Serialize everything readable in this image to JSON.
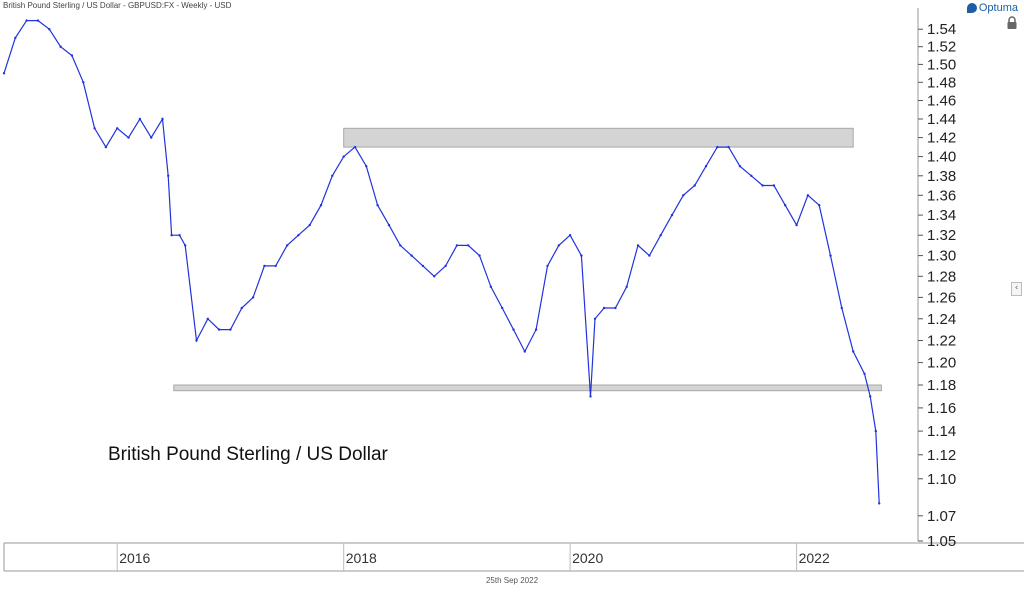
{
  "header": {
    "title": "British Pound Sterling / US Dollar - GBPUSD:FX - Weekly - USD",
    "brand": "Optuma"
  },
  "footer": {
    "date": "25th Sep 2022"
  },
  "colors": {
    "series": "#2233dd",
    "zone": "#d4d4d4",
    "zone_border": "#a8a8a8",
    "axis": "#999999"
  },
  "icons": {
    "brand": "optuma-logo-icon",
    "lock": "lock-icon",
    "collapse": "chevron-left-icon"
  },
  "chart_data": {
    "type": "line",
    "title": "British Pound Sterling / US Dollar",
    "subtitle": "",
    "xlabel": "",
    "ylabel": "",
    "y_scale": "log",
    "ylim": [
      1.05,
      1.56
    ],
    "xlim": [
      2015.0,
      2024.0
    ],
    "grid": false,
    "legend": "none",
    "y_ticks": [
      1.05,
      1.07,
      1.1,
      1.12,
      1.14,
      1.16,
      1.18,
      1.2,
      1.22,
      1.24,
      1.26,
      1.28,
      1.3,
      1.32,
      1.34,
      1.36,
      1.38,
      1.4,
      1.42,
      1.44,
      1.46,
      1.48,
      1.5,
      1.52,
      1.54
    ],
    "y_tick_labels": [
      "1.05",
      "1.07",
      "1.10",
      "1.12",
      "1.14",
      "1.16",
      "1.18",
      "1.20",
      "1.22",
      "1.24",
      "1.26",
      "1.28",
      "1.30",
      "1.32",
      "1.34",
      "1.36",
      "1.38",
      "1.40",
      "1.42",
      "1.44",
      "1.46",
      "1.48",
      "1.50",
      "1.52",
      "1.54"
    ],
    "x_ticks": [
      2016,
      2018,
      2020,
      2022
    ],
    "x_tick_labels": [
      "2016",
      "2018",
      "2020",
      "2022"
    ],
    "series": [
      {
        "x": [
          2015.0,
          2015.1,
          2015.2,
          2015.3,
          2015.4,
          2015.5,
          2015.6,
          2015.7,
          2015.8,
          2015.9,
          2016.0,
          2016.1,
          2016.2,
          2016.3,
          2016.4,
          2016.45,
          2016.48,
          2016.55,
          2016.6,
          2016.7,
          2016.8,
          2016.9,
          2017.0,
          2017.1,
          2017.2,
          2017.3,
          2017.4,
          2017.5,
          2017.6,
          2017.7,
          2017.8,
          2017.9,
          2018.0,
          2018.1,
          2018.2,
          2018.3,
          2018.4,
          2018.5,
          2018.6,
          2018.7,
          2018.8,
          2018.9,
          2019.0,
          2019.1,
          2019.2,
          2019.3,
          2019.4,
          2019.5,
          2019.6,
          2019.7,
          2019.8,
          2019.9,
          2020.0,
          2020.1,
          2020.18,
          2020.22,
          2020.3,
          2020.4,
          2020.5,
          2020.6,
          2020.7,
          2020.8,
          2020.9,
          2021.0,
          2021.1,
          2021.2,
          2021.3,
          2021.4,
          2021.5,
          2021.6,
          2021.7,
          2021.8,
          2021.9,
          2022.0,
          2022.1,
          2022.2,
          2022.3,
          2022.4,
          2022.5,
          2022.6,
          2022.65,
          2022.7,
          2022.73
        ],
        "values": [
          1.49,
          1.53,
          1.55,
          1.55,
          1.54,
          1.52,
          1.51,
          1.48,
          1.43,
          1.41,
          1.43,
          1.42,
          1.44,
          1.42,
          1.44,
          1.38,
          1.32,
          1.32,
          1.31,
          1.22,
          1.24,
          1.23,
          1.23,
          1.25,
          1.26,
          1.29,
          1.29,
          1.31,
          1.32,
          1.33,
          1.35,
          1.38,
          1.4,
          1.41,
          1.39,
          1.35,
          1.33,
          1.31,
          1.3,
          1.29,
          1.28,
          1.29,
          1.31,
          1.31,
          1.3,
          1.27,
          1.25,
          1.23,
          1.21,
          1.23,
          1.29,
          1.31,
          1.32,
          1.3,
          1.17,
          1.24,
          1.25,
          1.25,
          1.27,
          1.31,
          1.3,
          1.32,
          1.34,
          1.36,
          1.37,
          1.39,
          1.41,
          1.41,
          1.39,
          1.38,
          1.37,
          1.37,
          1.35,
          1.33,
          1.36,
          1.35,
          1.3,
          1.25,
          1.21,
          1.19,
          1.17,
          1.14,
          1.08
        ]
      }
    ],
    "annotations": [
      {
        "type": "zone",
        "x": [
          2018.0,
          2022.5
        ],
        "y": [
          1.41,
          1.43
        ]
      },
      {
        "type": "zone",
        "x": [
          2016.5,
          2022.75
        ],
        "y": [
          1.175,
          1.18
        ]
      }
    ]
  }
}
